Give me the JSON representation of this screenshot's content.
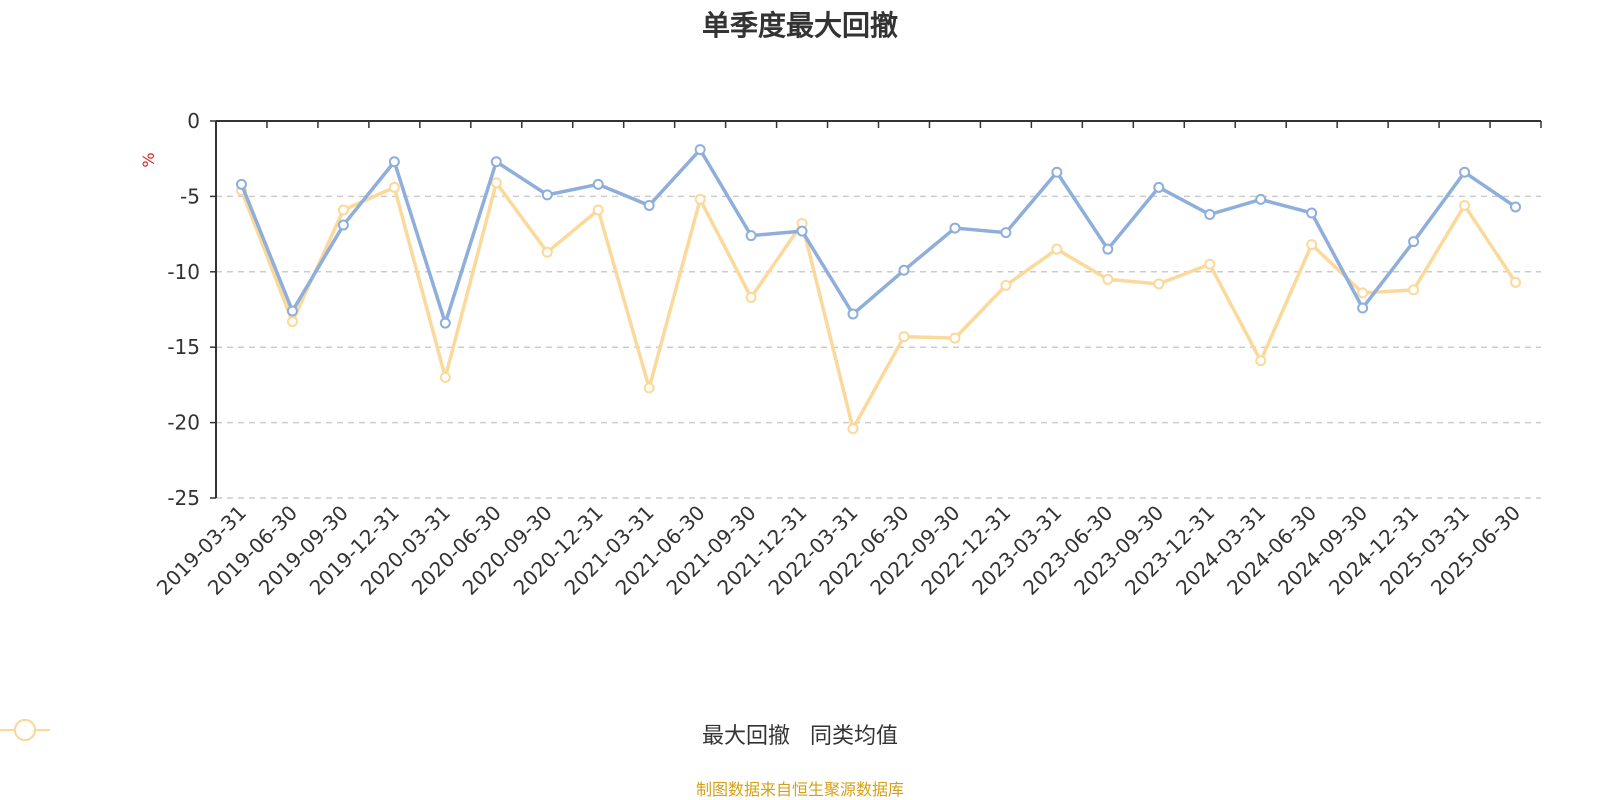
{
  "title": "单季度最大回撤",
  "footer": "制图数据来自恒生聚源数据库",
  "chart_data": {
    "type": "line",
    "title": "单季度最大回撤",
    "ylabel": "%",
    "ylim": [
      -25,
      0
    ],
    "yticks": [
      0,
      -5,
      -10,
      -15,
      -20,
      -25
    ],
    "grid": true,
    "legend_position": "bottom",
    "categories": [
      "2019-03-31",
      "2019-06-30",
      "2019-09-30",
      "2019-12-31",
      "2020-03-31",
      "2020-06-30",
      "2020-09-30",
      "2020-12-31",
      "2021-03-31",
      "2021-06-30",
      "2021-09-30",
      "2021-12-31",
      "2022-03-31",
      "2022-06-30",
      "2022-09-30",
      "2022-12-31",
      "2023-03-31",
      "2023-06-30",
      "2023-09-30",
      "2023-12-31",
      "2024-03-31",
      "2024-06-30",
      "2024-09-30",
      "2024-12-31",
      "2025-03-31",
      "2025-06-30"
    ],
    "series": [
      {
        "name": "最大回撤",
        "color": "#8eaedb",
        "values": [
          -4.2,
          -12.6,
          -6.9,
          -2.7,
          -13.4,
          -2.7,
          -4.9,
          -4.2,
          -5.6,
          -1.9,
          -7.6,
          -7.3,
          -12.8,
          -9.9,
          -7.1,
          -7.4,
          -3.4,
          -8.5,
          -4.4,
          -6.2,
          -5.2,
          -6.1,
          -12.4,
          -8.0,
          -3.4,
          -5.7
        ]
      },
      {
        "name": "同类均值",
        "color": "#fbd99b",
        "values": [
          -4.6,
          -13.3,
          -5.9,
          -4.4,
          -17.0,
          -4.1,
          -8.7,
          -5.9,
          -17.7,
          -5.2,
          -11.7,
          -6.8,
          -20.4,
          -14.3,
          -14.4,
          -10.9,
          -8.5,
          -10.5,
          -10.8,
          -9.5,
          -15.9,
          -8.2,
          -11.4,
          -11.2,
          -5.6,
          -10.7
        ]
      }
    ]
  }
}
